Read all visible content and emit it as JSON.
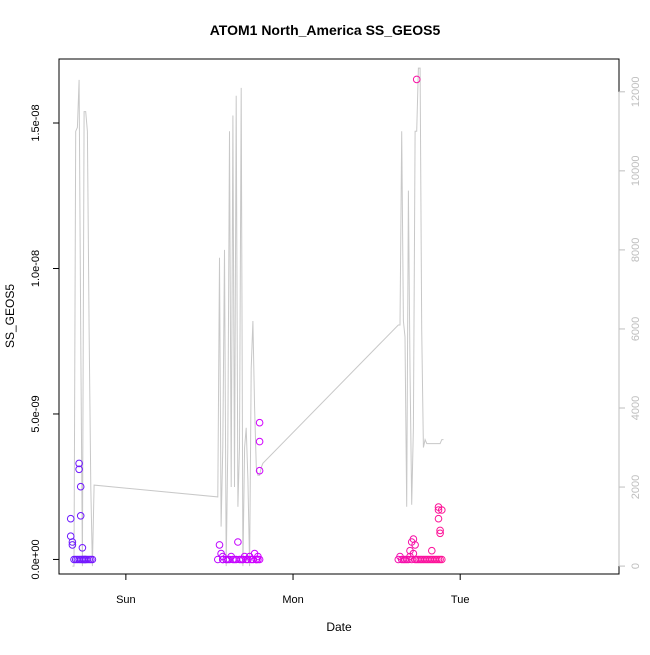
{
  "chart_data": {
    "type": "scatter",
    "title": "ATOM1 North_America SS_GEOS5",
    "xlabel": "Date",
    "ylabel": "SS_GEOS5",
    "x_ticks": [
      "Sun",
      "Mon",
      "Tue"
    ],
    "y_ticks": [
      "0.0e+00",
      "5.0e-09",
      "1.0e-08",
      "1.5e-08"
    ],
    "y_tick_values": [
      0,
      5e-09,
      1e-08,
      1.5e-08
    ],
    "y2_ticks": [
      "0",
      "2000",
      "4000",
      "6000",
      "8000",
      "10000",
      "12000"
    ],
    "xlim": [
      -0.4,
      2.95
    ],
    "ylim": [
      -5e-10,
      1.72e-08
    ],
    "y2lim": [
      -200,
      12830
    ],
    "grid": false,
    "series": [
      {
        "kind": "points",
        "marker": "open-circle",
        "colors": {
          "start": "#6a1aff",
          "mid": "#d000ff",
          "end": "#ff1493"
        },
        "x": [
          -0.33,
          -0.33,
          -0.32,
          -0.32,
          -0.31,
          -0.3,
          -0.29,
          -0.28,
          -0.28,
          -0.28,
          -0.27,
          -0.27,
          -0.26,
          -0.26,
          -0.25,
          -0.25,
          -0.24,
          -0.23,
          -0.22,
          -0.21,
          -0.2,
          -0.24,
          -0.27,
          -0.26,
          0.55,
          0.56,
          0.57,
          0.58,
          0.6,
          0.61,
          0.62,
          0.63,
          0.64,
          0.65,
          0.66,
          0.67,
          0.68,
          0.69,
          0.7,
          0.71,
          0.72,
          0.73,
          0.74,
          0.75,
          0.76,
          0.77,
          0.78,
          0.79,
          0.58,
          0.7,
          0.78,
          0.8,
          0.79,
          0.58,
          0.6,
          1.63,
          1.64,
          1.65,
          1.66,
          1.67,
          1.68,
          1.69,
          1.7,
          1.71,
          1.72,
          1.73,
          1.74,
          1.75,
          1.76,
          1.77,
          1.78,
          1.79,
          1.8,
          1.81,
          1.82,
          1.83,
          1.84,
          1.85,
          1.86,
          1.87,
          1.88,
          1.89,
          1.7,
          1.71,
          1.72,
          1.73,
          1.74,
          1.83,
          1.87,
          1.87,
          1.88,
          1.88,
          1.89,
          1.87
        ],
        "y": [
          1.4e-09,
          8e-10,
          6e-10,
          5e-10,
          0,
          0,
          0,
          0,
          3.3e-09,
          3.1e-09,
          2.5e-09,
          1.5e-09,
          4e-10,
          0,
          0,
          0,
          0,
          0,
          0,
          0,
          0,
          0,
          0,
          0,
          0,
          5e-10,
          2e-10,
          1e-10,
          0,
          0,
          0,
          1e-10,
          0,
          0,
          0,
          6e-10,
          0,
          0,
          0,
          1e-10,
          0,
          0,
          1e-10,
          0,
          0,
          2e-10,
          0,
          1e-10,
          0,
          0,
          0,
          0,
          0,
          0,
          0,
          0,
          1e-10,
          0,
          0,
          0,
          0,
          0,
          1e-10,
          0,
          2e-10,
          0,
          0,
          0,
          0,
          0,
          0,
          0,
          0,
          0,
          0,
          0,
          0,
          0,
          0,
          0,
          0,
          0,
          3e-10,
          6e-10,
          7e-10,
          5e-10,
          1.65e-08,
          3e-10,
          1.7e-09,
          1.4e-09,
          1e-09,
          9e-10,
          1.7e-09,
          1.8e-09
        ],
        "x_extra": [
          0.8,
          0.8,
          0.8
        ],
        "y_extra": [
          4.7e-09,
          4.05e-09,
          3.05e-09
        ]
      },
      {
        "kind": "line",
        "axis": "right",
        "color": "#c8c8c8",
        "x": [
          -0.32,
          -0.31,
          -0.3,
          -0.29,
          -0.28,
          -0.27,
          -0.26,
          -0.25,
          -0.24,
          -0.23,
          -0.22,
          -0.21,
          -0.2,
          -0.19,
          0.55,
          0.55,
          0.56,
          0.57,
          0.58,
          0.59,
          0.6,
          0.61,
          0.62,
          0.63,
          0.64,
          0.65,
          0.66,
          0.67,
          0.68,
          0.69,
          0.7,
          0.71,
          0.72,
          0.73,
          0.74,
          0.75,
          0.76,
          0.77,
          0.78,
          0.79,
          0.8,
          0.81,
          0.82,
          1.63,
          1.64,
          1.65,
          1.66,
          1.67,
          1.68,
          1.69,
          1.7,
          1.71,
          1.72,
          1.73,
          1.74,
          1.75,
          1.76,
          1.77,
          1.78,
          1.79,
          1.8,
          1.81,
          1.82,
          1.83,
          1.84,
          1.85,
          1.86,
          1.87,
          1.88,
          1.89,
          1.9
        ],
        "y": [
          0,
          0,
          11000,
          11100,
          12300,
          6000,
          0,
          11500,
          11500,
          11000,
          6000,
          2000,
          0,
          2050,
          1750,
          1750,
          7800,
          1000,
          3000,
          8000,
          0,
          3000,
          11000,
          2000,
          11400,
          2000,
          11900,
          1500,
          3000,
          12100,
          0,
          3000,
          3500,
          2200,
          0,
          5000,
          6200,
          4000,
          2500,
          2300,
          2300,
          2500,
          2600,
          6100,
          6100,
          11000,
          6200,
          5800,
          1500,
          9500,
          5000,
          1550,
          3500,
          11000,
          11000,
          12600,
          12600,
          6000,
          3000,
          3200,
          3100,
          3100,
          3100,
          3100,
          3100,
          3100,
          3100,
          3100,
          3100,
          3200,
          3200
        ]
      }
    ]
  }
}
